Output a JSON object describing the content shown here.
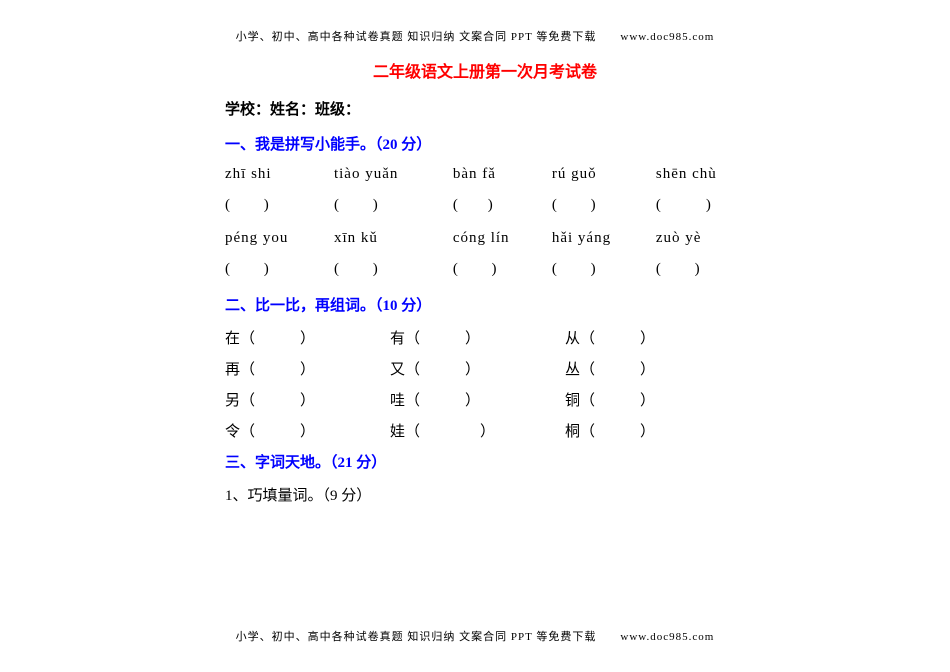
{
  "header_text": "小学、初中、高中各种试卷真题 知识归纳 文案合同 PPT 等免费下载",
  "header_url": "www.doc985.com",
  "title": "二年级语文上册第一次月考试卷",
  "info_label": "学校：姓名：班级：",
  "section1": {
    "head": "一、我是拼写小能手。（20 分）",
    "pinyin_row1": [
      "zhī shi",
      "tiào yuǎn",
      "bàn fǎ",
      "rú  guǒ",
      "shēn chù"
    ],
    "blank1": [
      "(　　 )",
      "(　　 )",
      "(　　)",
      "(　　 )",
      "(　　　)"
    ],
    "pinyin_row2": [
      "péng you",
      "xīn kǔ",
      "cóng lín",
      "hǎi yáng",
      "zuò yè"
    ],
    "blank2": [
      "(　　 )",
      "(　　 )",
      "(　　 )",
      "(　　 )",
      "(　　 )"
    ]
  },
  "section2": {
    "head": "二、比一比，再组词。（10 分）",
    "rows": [
      [
        "在（　　　）",
        "有（　　　）",
        "从（　　　）"
      ],
      [
        "再（　　　）",
        "又（　　　）",
        "丛（　　　）"
      ],
      [
        "另（　　　）",
        "哇（　　　）",
        "铜（　　　）"
      ],
      [
        "令（　　　）",
        "娃（　　　　）",
        "桐（　　　）"
      ]
    ]
  },
  "section3": {
    "head": "三、字词天地。（21 分）",
    "sub1": "1、巧填量词。（9 分）"
  },
  "colors": {
    "title": "#ff0000",
    "section": "#0000ff",
    "text": "#000000",
    "background": "#ffffff"
  }
}
